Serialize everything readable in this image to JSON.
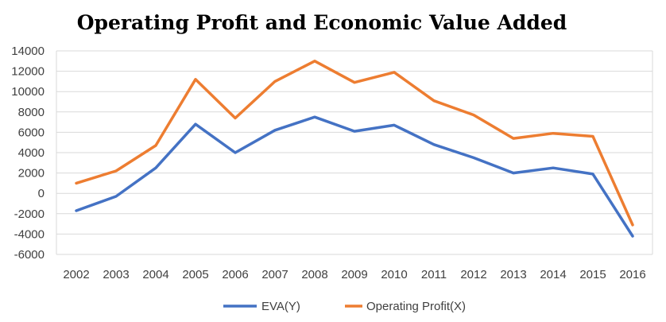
{
  "chart_data": {
    "type": "line",
    "title": "Operating Profit and Economic Value Added",
    "xlabel": "",
    "ylabel": "",
    "categories": [
      "2002",
      "2003",
      "2004",
      "2005",
      "2006",
      "2007",
      "2008",
      "2009",
      "2010",
      "2011",
      "2012",
      "2013",
      "2014",
      "2015",
      "2016"
    ],
    "ylim": [
      -6000,
      14000
    ],
    "yticks": [
      14000,
      12000,
      10000,
      8000,
      6000,
      4000,
      2000,
      0,
      -2000,
      -4000,
      -6000
    ],
    "grid": true,
    "legend_position": "bottom",
    "series": [
      {
        "name": "EVA(Y)",
        "color": "#4472c4",
        "values": [
          -1700,
          -300,
          2500,
          6800,
          4000,
          6200,
          7500,
          6100,
          6700,
          4800,
          3500,
          2000,
          2500,
          1900,
          -4200
        ]
      },
      {
        "name": "Operating Profit(X)",
        "color": "#ed7d31",
        "values": [
          1000,
          2200,
          4700,
          11200,
          7400,
          11000,
          13000,
          10900,
          11900,
          9100,
          7700,
          5400,
          5900,
          5600,
          -3100
        ]
      }
    ]
  }
}
